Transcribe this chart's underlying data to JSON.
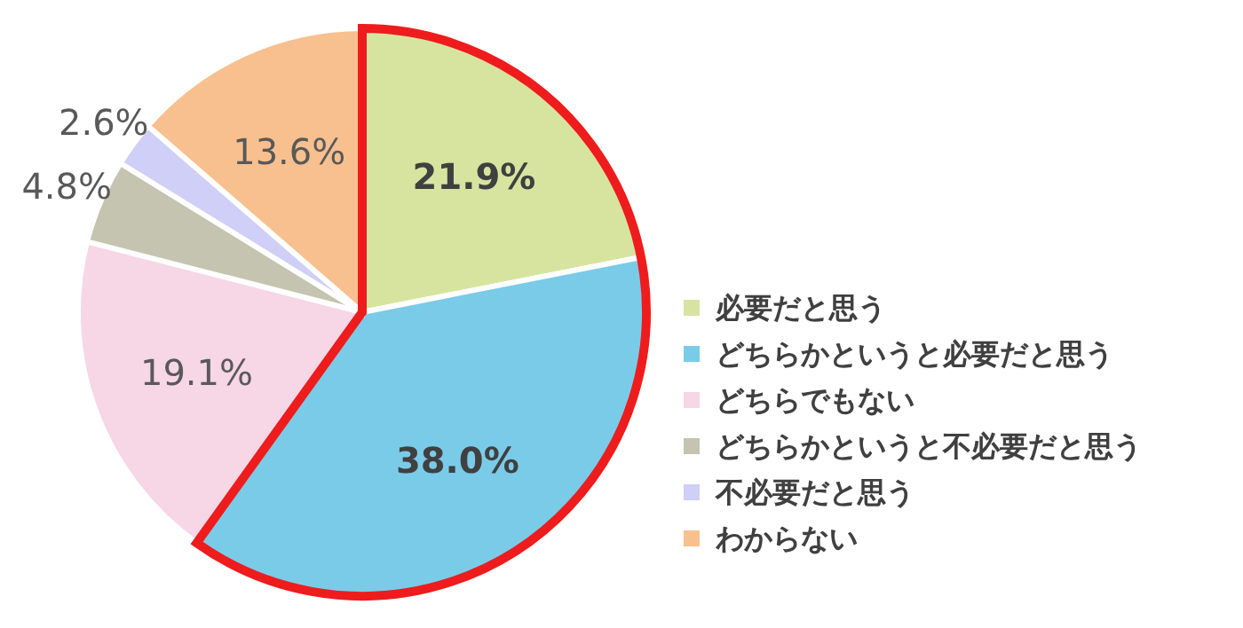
{
  "chart_data": {
    "type": "pie",
    "categories": [
      "必要だと思う",
      "どちらかというと必要だと思う",
      "どちらでもない",
      "どちらかというと不必要だと思う",
      "不必要だと思う",
      "わからない"
    ],
    "values": [
      21.9,
      38.0,
      19.1,
      4.8,
      2.6,
      13.6
    ],
    "colors": [
      "#d7e4a0",
      "#7acbe8",
      "#f7d6e6",
      "#c4c4b0",
      "#cfcff7",
      "#f8c08f"
    ],
    "value_labels": [
      "21.9%",
      "38.0%",
      "19.1%",
      "4.8%",
      "2.6%",
      "13.6%"
    ],
    "legend": "right"
  }
}
